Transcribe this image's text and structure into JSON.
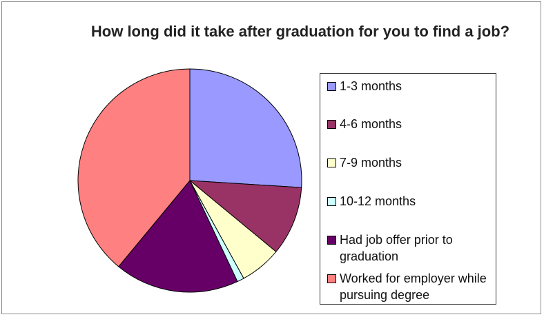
{
  "chart_data": {
    "type": "pie",
    "title": "How long did it take after graduation for you to find a job?",
    "categories": [
      "1-3 months",
      "4-6 months",
      "7-9 months",
      "10-12 months",
      "Had job offer prior to graduation",
      "Worked for employer while pursuing degree"
    ],
    "values": [
      26,
      10,
      6,
      1,
      18,
      39
    ],
    "colors": [
      "#9999ff",
      "#993366",
      "#ffffcc",
      "#ccffff",
      "#660066",
      "#ff8080"
    ]
  }
}
